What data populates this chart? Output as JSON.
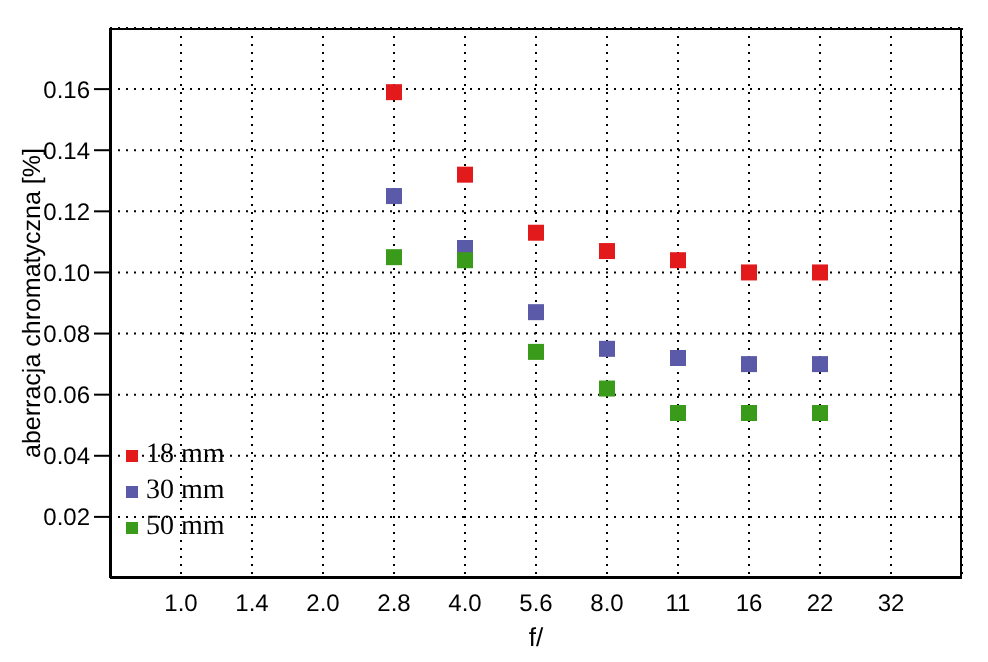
{
  "chart_data": {
    "type": "scatter",
    "xlabel": "f/",
    "ylabel": "aberracja chromatyczna [%]",
    "categories": [
      "1.0",
      "1.4",
      "2.0",
      "2.8",
      "4.0",
      "5.6",
      "8.0",
      "11",
      "16",
      "22",
      "32"
    ],
    "series": [
      {
        "name": "18 mm",
        "color": "#e31a1c",
        "values": [
          null,
          null,
          null,
          0.159,
          0.132,
          0.113,
          0.107,
          0.104,
          0.1,
          0.1,
          null
        ]
      },
      {
        "name": "30 mm",
        "color": "#5a5aa8",
        "values": [
          null,
          null,
          null,
          0.125,
          0.108,
          0.087,
          0.075,
          0.072,
          0.07,
          0.07,
          null
        ]
      },
      {
        "name": "50 mm",
        "color": "#3a9a1a",
        "values": [
          null,
          null,
          null,
          0.105,
          0.104,
          0.074,
          0.062,
          0.054,
          0.054,
          0.054,
          null
        ]
      }
    ],
    "ylim": [
      0,
      0.18
    ],
    "yticks": [
      0.02,
      0.04,
      0.06,
      0.08,
      {
        "value": 0.1,
        "label": "0.10"
      },
      0.12,
      0.14,
      0.16
    ],
    "grid": true,
    "legend": "bottom left",
    "marker": "square"
  }
}
